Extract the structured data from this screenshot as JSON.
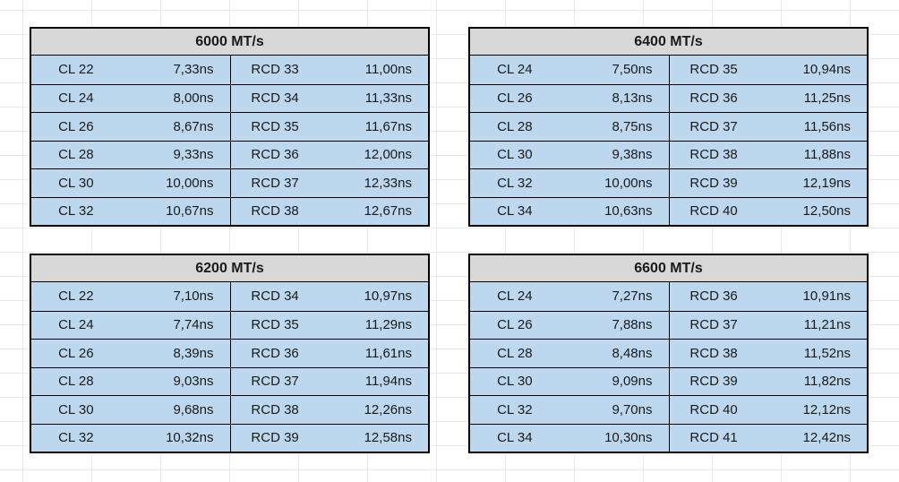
{
  "colors": {
    "background": "#ffffff",
    "grid_line": "#e8e8e8",
    "header_bg": "#d8d8d8",
    "cell_bg": "#bdd7ee",
    "border": "#000000"
  },
  "tables": [
    {
      "title": "6000 MT/s",
      "rows": [
        {
          "cl": "CL 22",
          "cl_time": "7,33ns",
          "rcd": "RCD 33",
          "rcd_time": "11,00ns"
        },
        {
          "cl": "CL 24",
          "cl_time": "8,00ns",
          "rcd": "RCD 34",
          "rcd_time": "11,33ns"
        },
        {
          "cl": "CL 26",
          "cl_time": "8,67ns",
          "rcd": "RCD 35",
          "rcd_time": "11,67ns"
        },
        {
          "cl": "CL 28",
          "cl_time": "9,33ns",
          "rcd": "RCD 36",
          "rcd_time": "12,00ns"
        },
        {
          "cl": "CL 30",
          "cl_time": "10,00ns",
          "rcd": "RCD 37",
          "rcd_time": "12,33ns"
        },
        {
          "cl": "CL 32",
          "cl_time": "10,67ns",
          "rcd": "RCD 38",
          "rcd_time": "12,67ns"
        }
      ]
    },
    {
      "title": "6400 MT/s",
      "rows": [
        {
          "cl": "CL 24",
          "cl_time": "7,50ns",
          "rcd": "RCD 35",
          "rcd_time": "10,94ns"
        },
        {
          "cl": "CL 26",
          "cl_time": "8,13ns",
          "rcd": "RCD 36",
          "rcd_time": "11,25ns"
        },
        {
          "cl": "CL 28",
          "cl_time": "8,75ns",
          "rcd": "RCD 37",
          "rcd_time": "11,56ns"
        },
        {
          "cl": "CL 30",
          "cl_time": "9,38ns",
          "rcd": "RCD 38",
          "rcd_time": "11,88ns"
        },
        {
          "cl": "CL 32",
          "cl_time": "10,00ns",
          "rcd": "RCD 39",
          "rcd_time": "12,19ns"
        },
        {
          "cl": "CL 34",
          "cl_time": "10,63ns",
          "rcd": "RCD 40",
          "rcd_time": "12,50ns"
        }
      ]
    },
    {
      "title": "6200 MT/s",
      "rows": [
        {
          "cl": "CL 22",
          "cl_time": "7,10ns",
          "rcd": "RCD 34",
          "rcd_time": "10,97ns"
        },
        {
          "cl": "CL 24",
          "cl_time": "7,74ns",
          "rcd": "RCD 35",
          "rcd_time": "11,29ns"
        },
        {
          "cl": "CL 26",
          "cl_time": "8,39ns",
          "rcd": "RCD 36",
          "rcd_time": "11,61ns"
        },
        {
          "cl": "CL 28",
          "cl_time": "9,03ns",
          "rcd": "RCD 37",
          "rcd_time": "11,94ns"
        },
        {
          "cl": "CL 30",
          "cl_time": "9,68ns",
          "rcd": "RCD 38",
          "rcd_time": "12,26ns"
        },
        {
          "cl": "CL 32",
          "cl_time": "10,32ns",
          "rcd": "RCD 39",
          "rcd_time": "12,58ns"
        }
      ]
    },
    {
      "title": "6600 MT/s",
      "rows": [
        {
          "cl": "CL 24",
          "cl_time": "7,27ns",
          "rcd": "RCD 36",
          "rcd_time": "10,91ns"
        },
        {
          "cl": "CL 26",
          "cl_time": "7,88ns",
          "rcd": "RCD 37",
          "rcd_time": "11,21ns"
        },
        {
          "cl": "CL 28",
          "cl_time": "8,48ns",
          "rcd": "RCD 38",
          "rcd_time": "11,52ns"
        },
        {
          "cl": "CL 30",
          "cl_time": "9,09ns",
          "rcd": "RCD 39",
          "rcd_time": "11,82ns"
        },
        {
          "cl": "CL 32",
          "cl_time": "9,70ns",
          "rcd": "RCD 40",
          "rcd_time": "12,12ns"
        },
        {
          "cl": "CL 34",
          "cl_time": "10,30ns",
          "rcd": "RCD 41",
          "rcd_time": "12,42ns"
        }
      ]
    }
  ]
}
